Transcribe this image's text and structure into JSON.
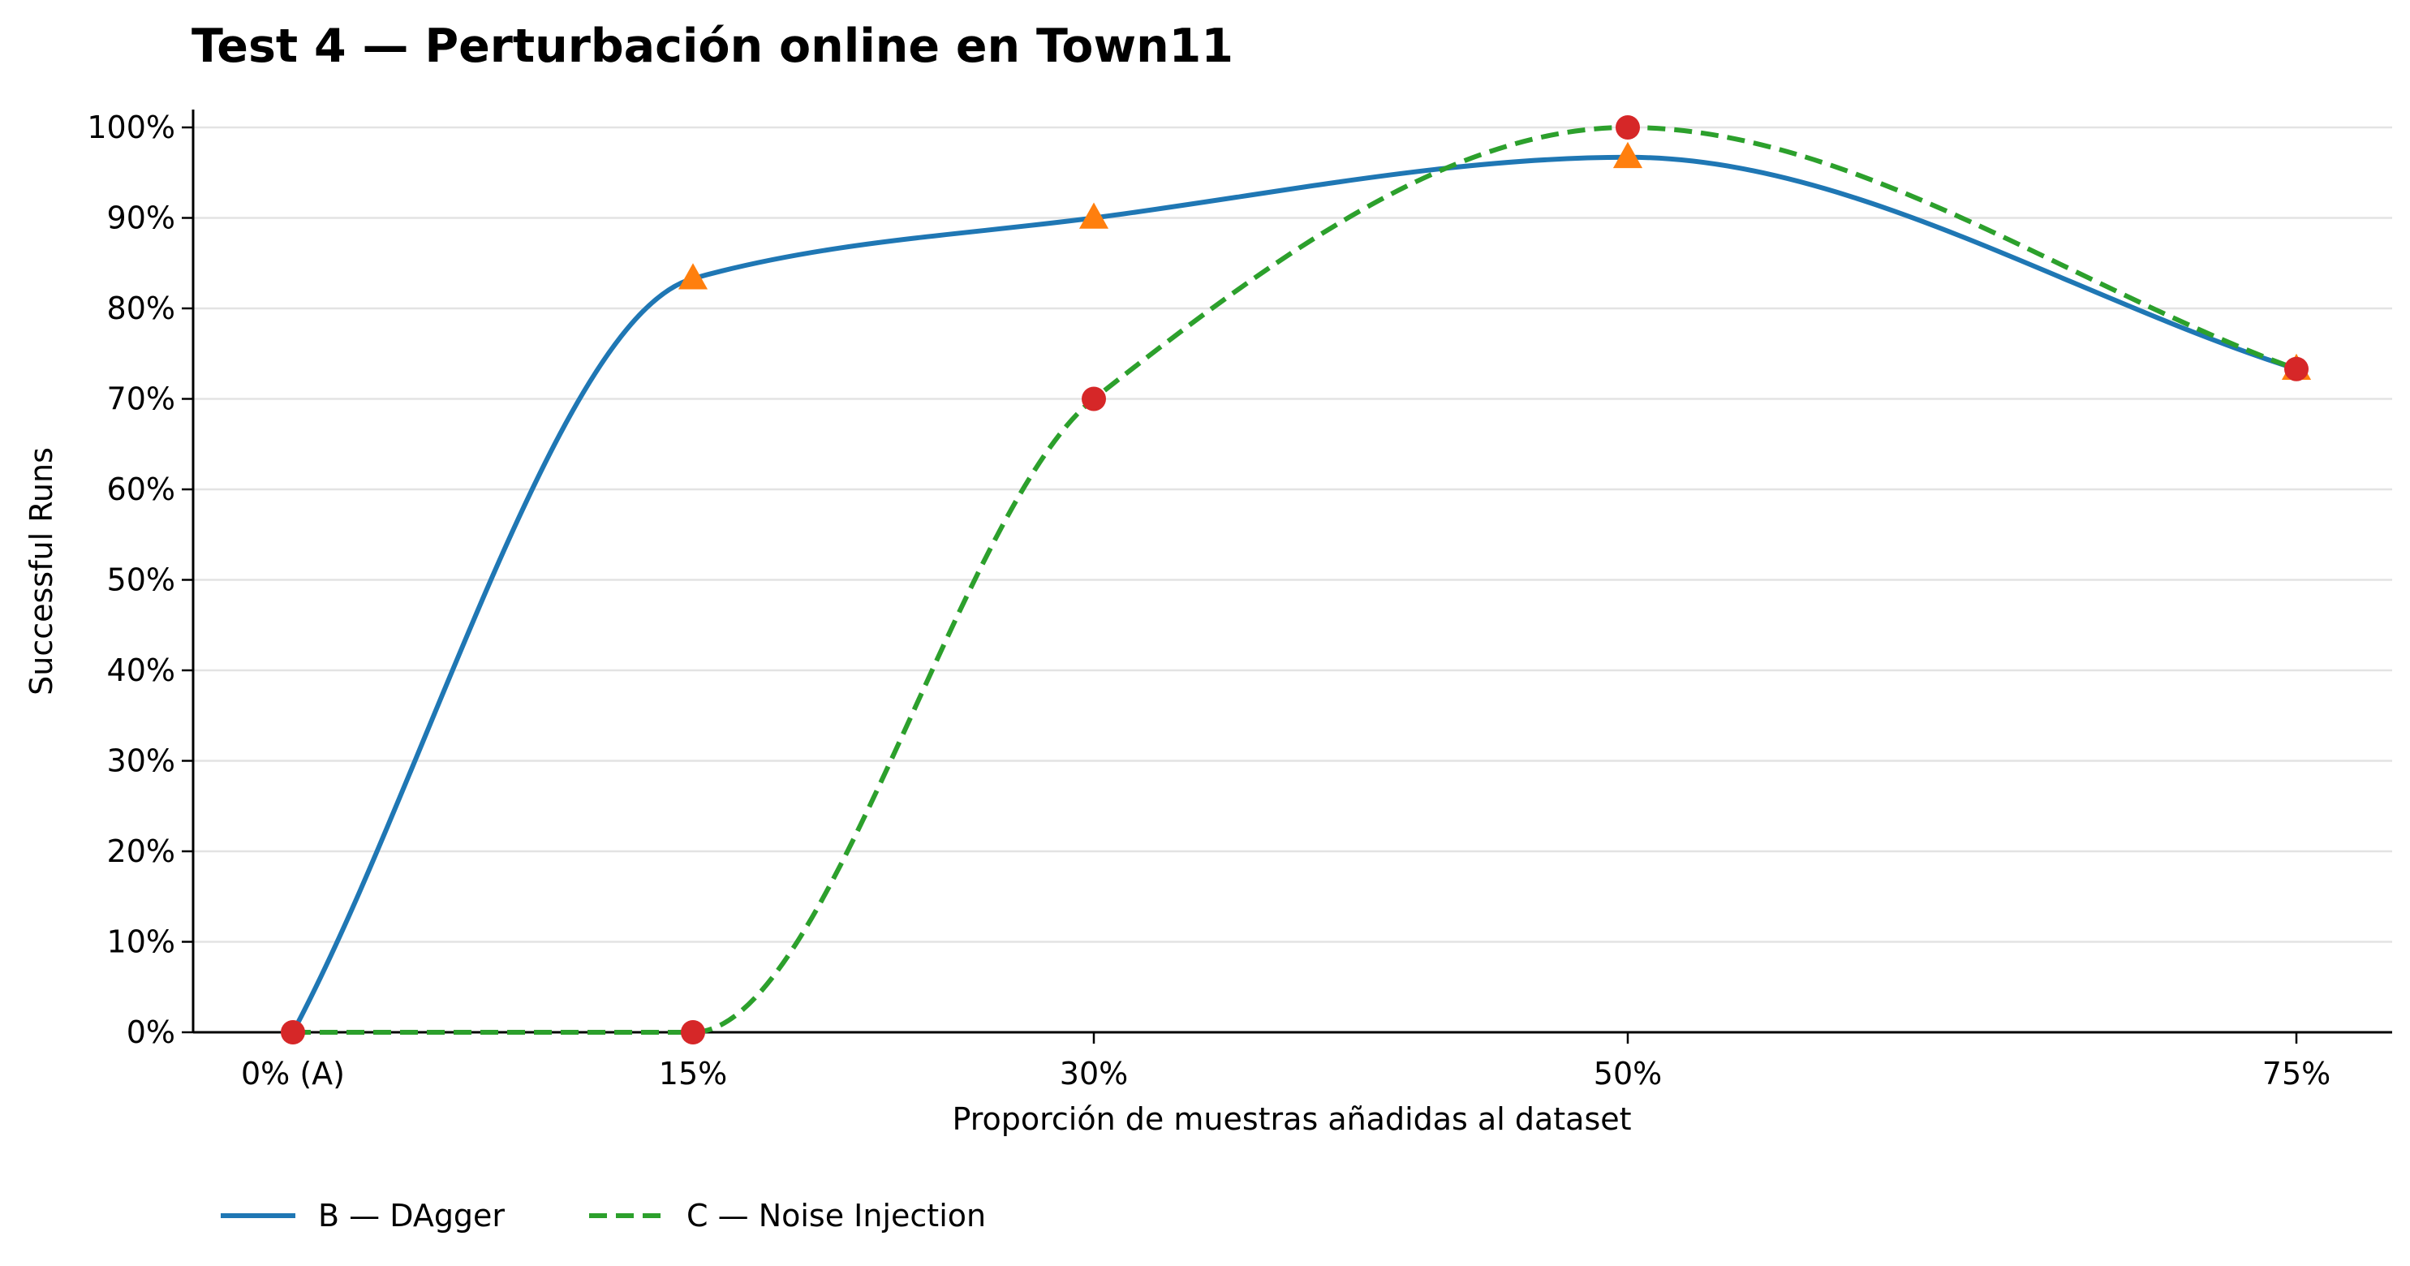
{
  "chart_data": {
    "type": "line",
    "title": "Test 4 — Perturbación online en Town11",
    "xlabel": "Proporción de muestras añadidas al dataset",
    "ylabel": "Successful Runs",
    "categories": [
      "0% (A)",
      "15%",
      "30%",
      "50%",
      "75%"
    ],
    "x": [
      0,
      15,
      30,
      50,
      75
    ],
    "ylim": [
      0,
      100
    ],
    "yticks": [
      0,
      10,
      20,
      30,
      40,
      50,
      60,
      70,
      80,
      90,
      100
    ],
    "ytick_labels": [
      "0%",
      "10%",
      "20%",
      "30%",
      "40%",
      "50%",
      "60%",
      "70%",
      "80%",
      "90%",
      "100%"
    ],
    "grid": "horizontal",
    "legend_position": "bottom-left",
    "series": [
      {
        "name": "B — DAgger",
        "values": [
          0,
          83.3,
          90,
          96.7,
          73.3
        ],
        "color": "#1f77b4",
        "line_style": "solid",
        "marker": "triangle",
        "marker_color": "#ff7f0e",
        "marker_points": [
          15,
          30,
          50,
          75
        ]
      },
      {
        "name": "C — Noise Injection",
        "values": [
          0,
          0,
          70,
          100,
          73.3
        ],
        "color": "#2ca02c",
        "line_style": "dashed",
        "marker": "circle",
        "marker_color": "#d62728",
        "marker_points": [
          0,
          15,
          30,
          50,
          75
        ]
      }
    ]
  }
}
